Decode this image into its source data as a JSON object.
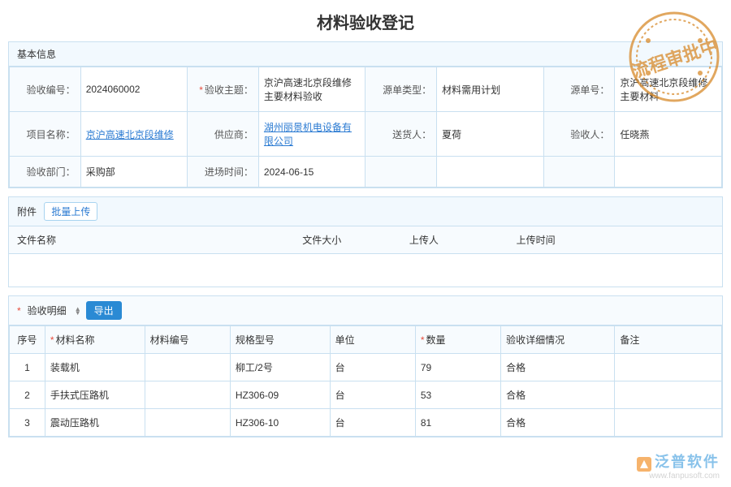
{
  "page": {
    "title": "材料验收登记"
  },
  "stamp": {
    "text": "流程审批中",
    "color": "#d88a2a"
  },
  "basic": {
    "section_label": "基本信息",
    "fields": {
      "accept_no": {
        "label": "验收编号：",
        "value": "2024060002"
      },
      "accept_subject": {
        "label": "验收主题：",
        "value": "京沪高速北京段维修主要材料验收",
        "required": true
      },
      "source_type": {
        "label": "源单类型：",
        "value": "材料需用计划"
      },
      "source_doc": {
        "label": "源单号：",
        "value": "京沪高速北京段维修主要材料"
      },
      "project_name": {
        "label": "项目名称：",
        "value": "京沪高速北京段维修",
        "link": true
      },
      "supplier": {
        "label": "供应商：",
        "value": "湖州丽景机电设备有限公司",
        "link": true
      },
      "deliverer": {
        "label": "送货人：",
        "value": "夏荷"
      },
      "receiver": {
        "label": "验收人：",
        "value": "任晓燕"
      },
      "accept_dept": {
        "label": "验收部门：",
        "value": "采购部"
      },
      "enter_time": {
        "label": "进场时间：",
        "value": "2024-06-15"
      }
    }
  },
  "attachments": {
    "section_label": "附件",
    "batch_upload_label": "批量上传",
    "columns": {
      "filename": "文件名称",
      "filesize": "文件大小",
      "uploader": "上传人",
      "upload_time": "上传时间"
    }
  },
  "detail": {
    "section_label": "验收明细",
    "required": true,
    "export_label": "导出",
    "columns": {
      "seq": "序号",
      "material_name": "材料名称",
      "material_no": "材料编号",
      "spec": "规格型号",
      "unit": "单位",
      "quantity": "数量",
      "status": "验收详细情况",
      "remark": "备注"
    },
    "required_cols": [
      "material_name",
      "quantity"
    ],
    "rows": [
      {
        "seq": "1",
        "material_name": "装载机",
        "material_no": "",
        "spec": "柳工/2号",
        "unit": "台",
        "quantity": "79",
        "status": "合格",
        "remark": ""
      },
      {
        "seq": "2",
        "material_name": "手扶式压路机",
        "material_no": "",
        "spec": "HZ306-09",
        "unit": "台",
        "quantity": "53",
        "status": "合格",
        "remark": ""
      },
      {
        "seq": "3",
        "material_name": "震动压路机",
        "material_no": "",
        "spec": "HZ306-10",
        "unit": "台",
        "quantity": "81",
        "status": "合格",
        "remark": ""
      }
    ]
  },
  "watermark": {
    "cn": "泛普软件",
    "en": "www.fanpusoft.com"
  }
}
